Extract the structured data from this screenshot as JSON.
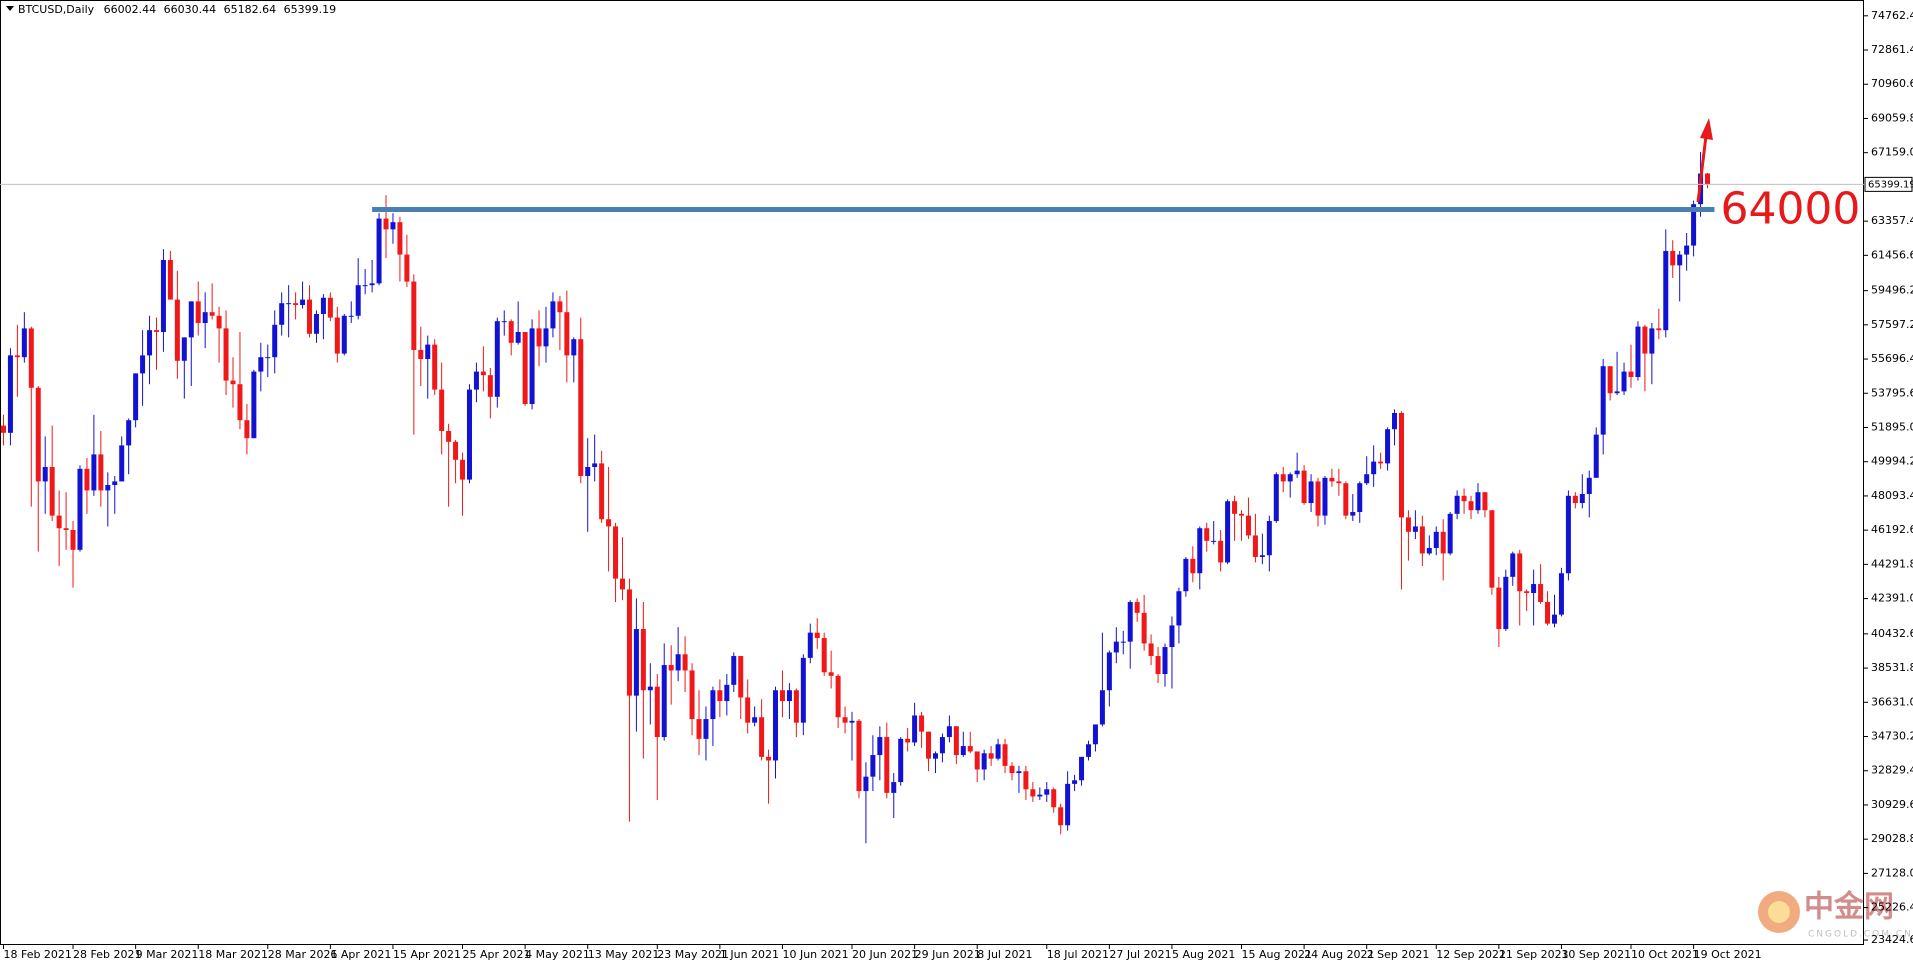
{
  "chart_data": {
    "type": "candlestick",
    "symbol": "BTCUSD,Daily",
    "up_color": "#1212d2",
    "down_color": "#f01818",
    "xlim": [
      -0.5,
      267.5
    ],
    "ylim": [
      23150,
      75640
    ],
    "xticks": [
      {
        "value": 0,
        "label": "18 Feb 2021"
      },
      {
        "value": 10,
        "label": "28 Feb 2021"
      },
      {
        "value": 19,
        "label": "9 Mar 2021"
      },
      {
        "value": 28,
        "label": "18 Mar 2021"
      },
      {
        "value": 38,
        "label": "28 Mar 2021"
      },
      {
        "value": 47,
        "label": "6 Apr 2021"
      },
      {
        "value": 56,
        "label": "15 Apr 2021"
      },
      {
        "value": 66,
        "label": "25 Apr 2021"
      },
      {
        "value": 75,
        "label": "4 May 2021"
      },
      {
        "value": 84,
        "label": "13 May 2021"
      },
      {
        "value": 94,
        "label": "23 May 2021"
      },
      {
        "value": 103,
        "label": "1 Jun 2021"
      },
      {
        "value": 112,
        "label": "10 Jun 2021"
      },
      {
        "value": 122,
        "label": "20 Jun 2021"
      },
      {
        "value": 131,
        "label": "29 Jun 2021"
      },
      {
        "value": 140,
        "label": "8 Jul 2021"
      },
      {
        "value": 150,
        "label": "18 Jul 2021"
      },
      {
        "value": 159,
        "label": "27 Jul 2021"
      },
      {
        "value": 168,
        "label": "5 Aug 2021"
      },
      {
        "value": 178,
        "label": "15 Aug 2021"
      },
      {
        "value": 187,
        "label": "24 Aug 2021"
      },
      {
        "value": 196,
        "label": "2 Sep 2021"
      },
      {
        "value": 206,
        "label": "12 Sep 2021"
      },
      {
        "value": 215,
        "label": "21 Sep 2021"
      },
      {
        "value": 224,
        "label": "30 Sep 2021"
      },
      {
        "value": 234,
        "label": "10 Oct 2021"
      },
      {
        "value": 243,
        "label": "19 Oct 2021"
      }
    ],
    "yticks": [
      {
        "value": 74762.4,
        "label": "74762.40"
      },
      {
        "value": 72861.4,
        "label": "72861.40"
      },
      {
        "value": 70960.6,
        "label": "70960.60"
      },
      {
        "value": 69059.8,
        "label": "69059.80"
      },
      {
        "value": 67159,
        "label": "67159.00"
      },
      {
        "value": 63357.4,
        "label": "63357.40"
      },
      {
        "value": 61456.6,
        "label": "61456.60"
      },
      {
        "value": 59496.2,
        "label": "59496.20"
      },
      {
        "value": 57597.2,
        "label": "57597.20"
      },
      {
        "value": 55696.4,
        "label": "55696.40"
      },
      {
        "value": 53795.6,
        "label": "53795.60"
      },
      {
        "value": 51895,
        "label": "51895.00"
      },
      {
        "value": 49994.2,
        "label": "49994.20"
      },
      {
        "value": 48093.4,
        "label": "48093.40"
      },
      {
        "value": 46192.6,
        "label": "46192.60"
      },
      {
        "value": 44291.8,
        "label": "44291.80"
      },
      {
        "value": 42391,
        "label": "42391.00"
      },
      {
        "value": 40432.6,
        "label": "40432.60"
      },
      {
        "value": 38531.8,
        "label": "38531.80"
      },
      {
        "value": 36631,
        "label": "36631.00"
      },
      {
        "value": 34730.2,
        "label": "34730.20"
      },
      {
        "value": 32829.4,
        "label": "32829.40"
      },
      {
        "value": 30929.6,
        "label": "30929.60"
      },
      {
        "value": 29028.8,
        "label": "29028.80"
      },
      {
        "value": 27128,
        "label": "27128.00"
      },
      {
        "value": 25226.4,
        "label": "25226.40"
      },
      {
        "value": 23424.6,
        "label": "23424.60"
      }
    ],
    "resistance": {
      "value": 64000,
      "x": [
        53,
        246
      ],
      "color": "#4a7fb3",
      "label_color": "#e8191a"
    },
    "open": [
      52000,
      51600,
      55900,
      55800,
      57400,
      54100,
      48900,
      49700,
      47000,
      46300,
      46200,
      45100,
      49600,
      48400,
      50400,
      48400,
      48700,
      48900,
      50900,
      52300,
      54900,
      55900,
      57300,
      57200,
      61200,
      59000,
      55600,
      56900,
      58900,
      57700,
      58300,
      58100,
      57400,
      54500,
      54300,
      52300,
      51300,
      55000,
      55800,
      55800,
      57600,
      58800,
      58800,
      58700,
      59000,
      57100,
      58200,
      59100,
      58000,
      56000,
      58100,
      58100,
      59800,
      59800,
      59900,
      63500,
      62900,
      63300,
      61500,
      60000,
      56200,
      55700,
      56500,
      54000,
      51700,
      51100,
      50100,
      49000,
      54000,
      55000,
      54800,
      53600,
      57800,
      57800,
      56600,
      57200,
      53200,
      57400,
      56400,
      57400,
      58900,
      58300,
      55900,
      56800,
      49200,
      49700,
      49900,
      46800,
      46400,
      43500,
      42900,
      37000,
      40700,
      37300,
      37500,
      34700,
      38700,
      38400,
      39300,
      38400,
      35700,
      34600,
      35700,
      37300,
      36700,
      37600,
      39200,
      36900,
      35500,
      35800,
      33600,
      33400,
      37300,
      36700,
      37300,
      35500,
      39100,
      40500,
      40200,
      38300,
      38100,
      35800,
      35500,
      35600,
      31700,
      32500,
      33700,
      34700,
      31600,
      32200,
      34600,
      34400,
      35900,
      35000,
      33500,
      33800,
      34700,
      35300,
      33700,
      34200,
      33900,
      32900,
      33800,
      33500,
      34300,
      33100,
      32700,
      32800,
      31800,
      31400,
      31500,
      31800,
      30800,
      29800,
      32100,
      32300,
      33600,
      34300,
      35400,
      37300,
      39400,
      40000,
      40000,
      42200,
      41600,
      39900,
      39200,
      38200,
      39700,
      40900,
      42800,
      44600,
      43800,
      46300,
      45600,
      45600,
      44400,
      47800,
      47100,
      47000,
      45900,
      44700,
      44800,
      46700,
      49300,
      48900,
      49300,
      49500,
      47700,
      48900,
      47000,
      49100,
      48900,
      48800,
      47000,
      47200,
      48800,
      49300,
      50000,
      49900,
      51800,
      52700,
      46900,
      46100,
      46400,
      44900,
      45200,
      46100,
      44900,
      47100,
      48100,
      47800,
      47300,
      48300,
      47300,
      43000,
      40700,
      43600,
      44900,
      42800,
      42700,
      43200,
      42200,
      41000,
      41500,
      43800,
      48100,
      47700,
      48200,
      49100,
      51500,
      55300,
      53800,
      53900,
      55000,
      54700,
      57500,
      56000,
      57400,
      57300,
      61700,
      60900,
      61500,
      62000,
      64300,
      66002.44
    ],
    "high": [
      52600,
      56300,
      57600,
      58300,
      57500,
      54200,
      51400,
      52000,
      48400,
      48300,
      46700,
      49800,
      50200,
      52600,
      51700,
      49400,
      49200,
      51400,
      52400,
      54900,
      57300,
      58100,
      58000,
      61800,
      61700,
      60600,
      56900,
      58900,
      60000,
      59400,
      59900,
      58600,
      58400,
      55800,
      57200,
      53200,
      55100,
      56600,
      56500,
      58400,
      59400,
      59800,
      59400,
      60000,
      59800,
      58400,
      59300,
      59400,
      58600,
      58200,
      58900,
      61300,
      60700,
      61200,
      63800,
      64800,
      63800,
      63600,
      62600,
      60400,
      57500,
      57000,
      56800,
      55500,
      52100,
      51200,
      50500,
      54300,
      55500,
      56400,
      55200,
      58000,
      58400,
      57900,
      58900,
      57200,
      57900,
      58400,
      58600,
      59400,
      59200,
      59500,
      56900,
      58000,
      51300,
      51500,
      50600,
      49700,
      46600,
      45800,
      43500,
      42400,
      42200,
      38800,
      38200,
      39900,
      39800,
      40800,
      40300,
      38800,
      37300,
      36400,
      37500,
      37900,
      38200,
      39400,
      39200,
      37900,
      36400,
      36800,
      34000,
      37500,
      38400,
      37700,
      37400,
      39300,
      41000,
      41300,
      40500,
      39500,
      38200,
      36400,
      36100,
      35700,
      33300,
      34800,
      35300,
      35500,
      32700,
      34700,
      35200,
      36600,
      36100,
      35000,
      33900,
      34900,
      35900,
      35300,
      35000,
      35000,
      33900,
      34000,
      34200,
      34600,
      34600,
      33300,
      33100,
      33100,
      32200,
      31900,
      32200,
      31900,
      31000,
      32800,
      32600,
      33600,
      34500,
      35400,
      40500,
      39500,
      40800,
      40600,
      42300,
      42400,
      42600,
      40400,
      39700,
      39900,
      41400,
      43000,
      44700,
      45300,
      46400,
      46600,
      46700,
      46200,
      47900,
      48100,
      47300,
      48000,
      47100,
      46000,
      47000,
      49400,
      49700,
      49400,
      50500,
      49800,
      49300,
      49100,
      49200,
      49600,
      49600,
      48900,
      48200,
      48900,
      50300,
      50900,
      50500,
      51900,
      52900,
      52800,
      47300,
      47300,
      47000,
      45900,
      46400,
      46800,
      47200,
      48400,
      48500,
      48100,
      48800,
      48300,
      47300,
      43600,
      44000,
      45000,
      45100,
      42900,
      44000,
      44300,
      42800,
      42600,
      44100,
      48400,
      48300,
      49300,
      49500,
      51900,
      55700,
      55300,
      56100,
      55500,
      56500,
      57800,
      57600,
      57700,
      58500,
      62900,
      62300,
      61700,
      62700,
      64500,
      67200,
      66030.44
    ],
    "low": [
      50900,
      50900,
      53600,
      55500,
      47500,
      45000,
      47100,
      46700,
      44200,
      45100,
      43000,
      45000,
      47100,
      48100,
      47500,
      46400,
      47100,
      48900,
      49300,
      51900,
      53100,
      54300,
      55100,
      56100,
      59000,
      54600,
      53500,
      54200,
      57000,
      56300,
      57900,
      55500,
      53700,
      53000,
      51800,
      50400,
      51300,
      53900,
      54700,
      54900,
      57000,
      56900,
      57900,
      58500,
      56900,
      56600,
      56800,
      57800,
      55500,
      55900,
      57700,
      57900,
      59300,
      59400,
      59800,
      61300,
      62100,
      60000,
      59700,
      51500,
      54200,
      53500,
      53700,
      50400,
      47500,
      48800,
      47000,
      48800,
      53300,
      53900,
      52400,
      53000,
      57000,
      55900,
      56500,
      53100,
      52900,
      55300,
      55500,
      56900,
      56200,
      54400,
      54400,
      48800,
      46100,
      48900,
      46600,
      43900,
      42200,
      42300,
      30000,
      35000,
      33500,
      35400,
      31200,
      34500,
      36500,
      37800,
      37200,
      34800,
      33700,
      33400,
      34200,
      35800,
      35900,
      37200,
      35700,
      34900,
      35300,
      33400,
      31000,
      32400,
      35800,
      35700,
      34700,
      34800,
      38800,
      39600,
      38100,
      37400,
      35200,
      34900,
      33400,
      31300,
      28800,
      31700,
      32300,
      31300,
      30200,
      32000,
      33900,
      34200,
      34100,
      32800,
      32700,
      33300,
      34400,
      33200,
      33600,
      33800,
      32200,
      32300,
      33100,
      33400,
      32700,
      32300,
      31600,
      31200,
      31100,
      31200,
      31100,
      30500,
      29300,
      29500,
      31700,
      32000,
      33400,
      33900,
      35300,
      36400,
      38800,
      39300,
      38500,
      41100,
      39500,
      38700,
      37700,
      37500,
      37400,
      39900,
      42500,
      43300,
      42900,
      45000,
      45400,
      43900,
      44300,
      45600,
      45600,
      45700,
      44400,
      44300,
      43900,
      46600,
      48300,
      48000,
      49100,
      47600,
      47200,
      46400,
      46500,
      48600,
      48100,
      46800,
      46700,
      46600,
      48700,
      48600,
      49600,
      49500,
      50900,
      42900,
      44500,
      45700,
      44200,
      44800,
      44800,
      43400,
      44800,
      46800,
      47100,
      46800,
      47100,
      46900,
      42600,
      39700,
      40600,
      43100,
      40900,
      41700,
      40900,
      42100,
      40900,
      40800,
      41400,
      43400,
      47400,
      47400,
      46900,
      49100,
      50400,
      53400,
      53700,
      53700,
      54100,
      54500,
      53900,
      54300,
      56800,
      56900,
      60200,
      58900,
      60600,
      61400,
      63600,
      65182.64
    ],
    "close": [
      51600,
      55900,
      55800,
      57400,
      54100,
      48900,
      49700,
      47000,
      46300,
      46200,
      45100,
      49600,
      48400,
      50400,
      48400,
      48700,
      48900,
      50900,
      52300,
      54900,
      55900,
      57300,
      57200,
      61200,
      59000,
      55600,
      56900,
      58900,
      57700,
      58300,
      58100,
      57400,
      54500,
      54300,
      52300,
      51300,
      55000,
      55800,
      55800,
      57600,
      58800,
      58800,
      58700,
      59000,
      57100,
      58200,
      59100,
      58000,
      56000,
      58100,
      58100,
      59800,
      59800,
      59900,
      63500,
      62900,
      63300,
      61500,
      60000,
      56200,
      55700,
      56500,
      54000,
      51700,
      51100,
      50100,
      49000,
      54000,
      55000,
      54800,
      53600,
      57800,
      57800,
      56600,
      57200,
      53200,
      57400,
      56400,
      57400,
      58900,
      58300,
      55900,
      56800,
      49200,
      49700,
      49900,
      46800,
      46400,
      43500,
      42900,
      37000,
      40700,
      37300,
      37500,
      34700,
      38700,
      38400,
      39300,
      38400,
      35700,
      34600,
      35700,
      37300,
      36700,
      37600,
      39200,
      36900,
      35500,
      35800,
      33600,
      33400,
      37300,
      36700,
      37300,
      35500,
      39100,
      40500,
      40200,
      38300,
      38100,
      35800,
      35500,
      35600,
      31700,
      32500,
      33700,
      34700,
      31600,
      32200,
      34600,
      34400,
      35900,
      35000,
      33500,
      33800,
      34700,
      35300,
      33700,
      34200,
      33900,
      32900,
      33800,
      33500,
      34300,
      33100,
      32700,
      32800,
      31800,
      31400,
      31500,
      31800,
      30800,
      29800,
      32100,
      32300,
      33600,
      34300,
      35400,
      37300,
      39400,
      40000,
      40000,
      42200,
      41600,
      39900,
      39200,
      38200,
      39700,
      40900,
      42800,
      44600,
      43800,
      46300,
      45600,
      45600,
      44400,
      47800,
      47100,
      47000,
      45900,
      44700,
      44800,
      46700,
      49300,
      48900,
      49300,
      49500,
      47700,
      48900,
      47000,
      49100,
      48900,
      48800,
      47000,
      47200,
      48800,
      49300,
      50000,
      49900,
      51800,
      52700,
      46900,
      46100,
      46400,
      44900,
      45200,
      46100,
      44900,
      47100,
      48100,
      47800,
      47300,
      48300,
      47300,
      43000,
      40700,
      43600,
      44900,
      42800,
      42700,
      43200,
      42200,
      41000,
      41500,
      43800,
      48100,
      47700,
      48200,
      49100,
      51500,
      55300,
      53800,
      53900,
      55000,
      54700,
      57500,
      56000,
      57400,
      57300,
      61700,
      60900,
      61500,
      62000,
      64300,
      66002.44,
      65399.19
    ]
  },
  "watermark": {
    "name": "中金网",
    "site": "CNGOLD.COM.CN"
  }
}
